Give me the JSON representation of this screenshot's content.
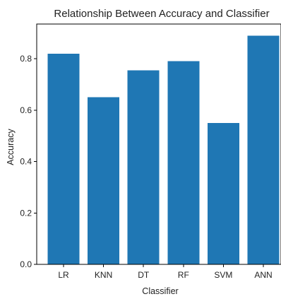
{
  "chart_data": {
    "type": "bar",
    "title": "Relationship Between Accuracy and Classifier",
    "xlabel": "Classifier",
    "ylabel": "Accuracy",
    "categories": [
      "LR",
      "KNN",
      "DT",
      "RF",
      "SVM",
      "ANN"
    ],
    "values": [
      0.82,
      0.65,
      0.755,
      0.79,
      0.55,
      0.89
    ],
    "ylim": [
      0,
      0.935
    ],
    "yticks": [
      0.0,
      0.2,
      0.4,
      0.6,
      0.8
    ],
    "ytick_labels": [
      "0.0",
      "0.2",
      "0.4",
      "0.6",
      "0.8"
    ],
    "bar_color": "#1f77b4",
    "grid": false,
    "legend": "none"
  }
}
